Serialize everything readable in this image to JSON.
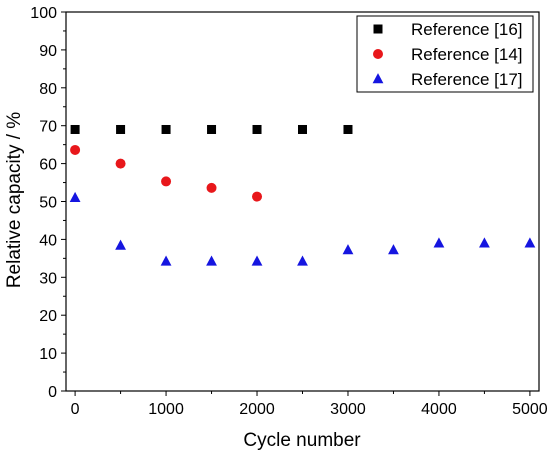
{
  "chart_data": {
    "type": "scatter",
    "title": "",
    "xlabel": "Cycle number",
    "ylabel": "Relative capacity / %",
    "xlim": [
      -100,
      5100
    ],
    "ylim": [
      0,
      100
    ],
    "x_ticks": [
      0,
      1000,
      2000,
      3000,
      4000,
      5000
    ],
    "y_ticks": [
      0,
      10,
      20,
      30,
      40,
      50,
      60,
      70,
      80,
      90,
      100
    ],
    "grid": false,
    "legend_position": "top-right",
    "series": [
      {
        "name": "Reference [16]",
        "marker": "square",
        "color": "#000000",
        "points": [
          [
            0,
            69
          ],
          [
            500,
            69
          ],
          [
            1000,
            69
          ],
          [
            1500,
            69
          ],
          [
            2000,
            69
          ],
          [
            2500,
            69
          ],
          [
            3000,
            69
          ]
        ]
      },
      {
        "name": "Reference [14]",
        "marker": "circle",
        "color": "#e8171b",
        "points": [
          [
            0,
            63.6
          ],
          [
            500,
            60
          ],
          [
            1000,
            55.3
          ],
          [
            1500,
            53.6
          ],
          [
            2000,
            51.3
          ]
        ]
      },
      {
        "name": "Reference [17]",
        "marker": "triangle",
        "color": "#1515e0",
        "points": [
          [
            0,
            51
          ],
          [
            500,
            38.4
          ],
          [
            1000,
            34.2
          ],
          [
            1500,
            34.2
          ],
          [
            2000,
            34.2
          ],
          [
            2500,
            34.2
          ],
          [
            3000,
            37.2
          ],
          [
            3500,
            37.2
          ],
          [
            4000,
            39
          ],
          [
            4500,
            39
          ],
          [
            5000,
            39
          ]
        ]
      }
    ]
  }
}
